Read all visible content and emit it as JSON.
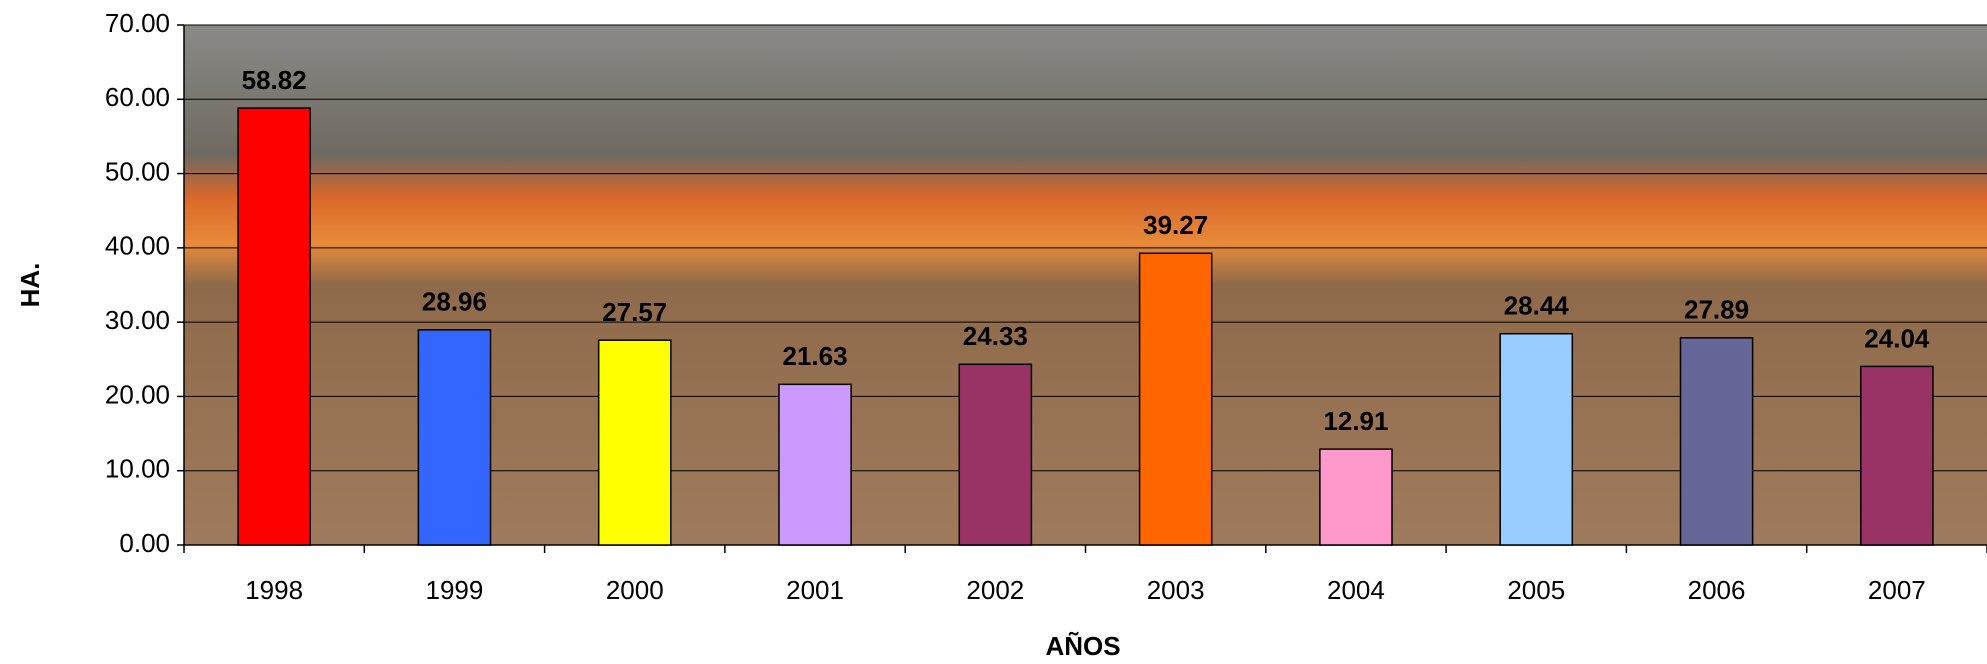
{
  "chart_data": {
    "type": "bar",
    "x_label": "AÑOS",
    "y_label": "HA.",
    "categories": [
      "1998",
      "1999",
      "2000",
      "2001",
      "2002",
      "2003",
      "2004",
      "2005",
      "2006",
      "2007"
    ],
    "values": [
      58.82,
      28.96,
      27.57,
      21.63,
      24.33,
      39.27,
      12.91,
      28.44,
      27.89,
      24.04
    ],
    "colors": [
      "#ff0000",
      "#3366ff",
      "#ffff00",
      "#cc99ff",
      "#993366",
      "#ff6600",
      "#ff99cc",
      "#99ccff",
      "#666699",
      "#993366"
    ],
    "ylim": [
      0,
      70
    ],
    "yticks": [
      {
        "value": 0,
        "label": "0.00"
      },
      {
        "value": 10,
        "label": "10.00"
      },
      {
        "value": 20,
        "label": "20.00"
      },
      {
        "value": 30,
        "label": "30.00"
      },
      {
        "value": 40,
        "label": "40.00"
      },
      {
        "value": 50,
        "label": "50.00"
      },
      {
        "value": 60,
        "label": "60.00"
      },
      {
        "value": 70,
        "label": "70.00"
      }
    ],
    "grid": true
  }
}
